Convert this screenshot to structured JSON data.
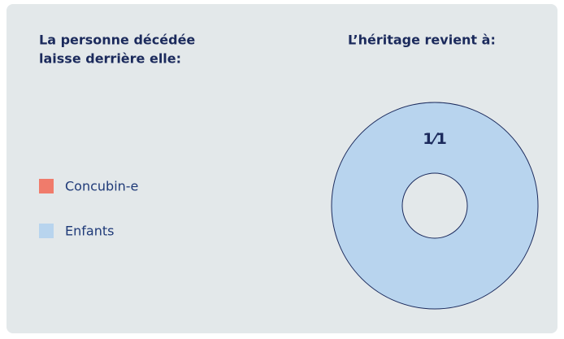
{
  "chart_data": {
    "type": "pie",
    "legend_title": [
      "La personne décédée",
      "laisse derrière elle:"
    ],
    "title": "L’héritage revient à:",
    "categories": [
      "Concubin-e",
      "Enfants"
    ],
    "values": [
      0,
      1
    ],
    "value_labels": [
      null,
      "1⁄1"
    ],
    "colors": [
      "#f07b6b",
      "#b8d4ee"
    ],
    "donut": true
  }
}
